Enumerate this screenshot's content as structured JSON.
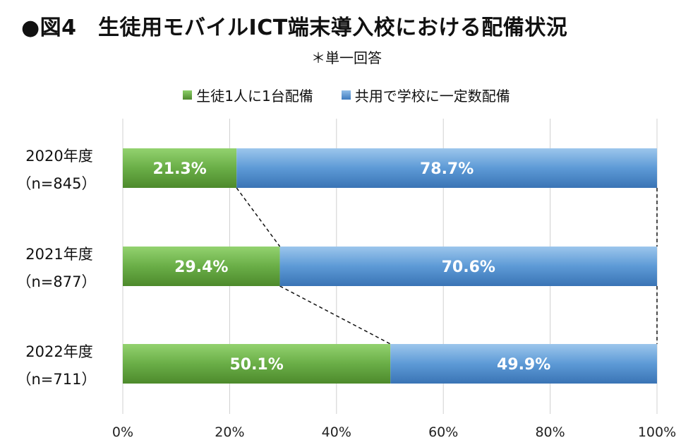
{
  "title": "●図4　生徒用モバイルICT端末導入校における配備状況",
  "subtitle": "＊単一回答",
  "chart_data": {
    "type": "bar",
    "orientation": "horizontal",
    "stacked": true,
    "percent_scale": true,
    "categories": [
      {
        "year": "2020年度",
        "n": "（n=845）"
      },
      {
        "year": "2021年度",
        "n": "（n=877）"
      },
      {
        "year": "2022年度",
        "n": "（n=711）"
      }
    ],
    "series": [
      {
        "name": "生徒1人に1台配備",
        "color": "#6aa84f",
        "values": [
          21.3,
          29.4,
          50.1
        ],
        "labels": [
          "21.3%",
          "29.4%",
          "50.1%"
        ]
      },
      {
        "name": "共用で学校に一定数配備",
        "color": "#5b9bd5",
        "values": [
          78.7,
          70.6,
          49.9
        ],
        "labels": [
          "78.7%",
          "70.6%",
          "49.9%"
        ]
      }
    ],
    "xlim": [
      0,
      100
    ],
    "x_ticks": [
      "0%",
      "20%",
      "40%",
      "60%",
      "80%",
      "100%"
    ],
    "grid": "vertical",
    "legend_position": "top-center",
    "connector_lines": "dashed"
  }
}
